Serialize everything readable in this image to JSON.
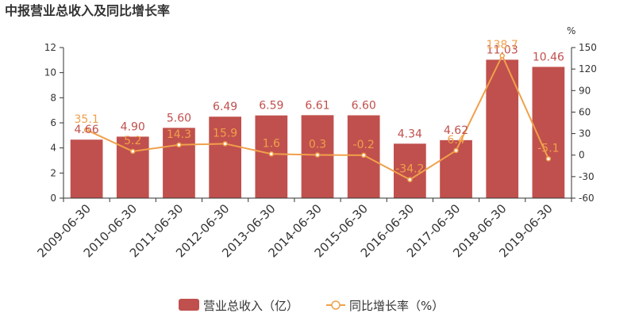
{
  "chart_data": {
    "type": "bar",
    "title": "中报营业总收入及同比增长率",
    "categories": [
      "2009-06-30",
      "2010-06-30",
      "2011-06-30",
      "2012-06-30",
      "2013-06-30",
      "2014-06-30",
      "2015-06-30",
      "2016-06-30",
      "2017-06-30",
      "2018-06-30",
      "2019-06-30"
    ],
    "series": [
      {
        "name": "营业总收入（亿）",
        "type": "bar",
        "axis": "left",
        "color": "#c0504d",
        "values": [
          4.66,
          4.9,
          5.6,
          6.49,
          6.59,
          6.61,
          6.6,
          4.34,
          4.62,
          11.03,
          10.46
        ],
        "labels": [
          "4.66",
          "4.90",
          "5.60",
          "6.49",
          "6.59",
          "6.61",
          "6.60",
          "4.34",
          "4.62",
          "11.03",
          "10.46"
        ]
      },
      {
        "name": "同比增长率（%）",
        "type": "line",
        "axis": "right",
        "color": "#f0a04b",
        "values": [
          35.1,
          5.2,
          14.3,
          15.9,
          1.6,
          0.3,
          -0.2,
          -34.2,
          6.4,
          138.7,
          -5.1
        ],
        "labels": [
          "35.1",
          "5.2",
          "14.3",
          "15.9",
          "1.6",
          "0.3",
          "-0.2",
          "-34.2",
          "6.4",
          "138.7",
          "-5.1"
        ]
      }
    ],
    "y_left": {
      "ylim": [
        0,
        12
      ],
      "ticks": [
        "0",
        "2",
        "4",
        "6",
        "8",
        "10",
        "12"
      ]
    },
    "y_right": {
      "ylim": [
        -60,
        150
      ],
      "unit": "%",
      "ticks": [
        "-60",
        "-30",
        "0",
        "30",
        "60",
        "90",
        "120",
        "150"
      ]
    },
    "grid": false,
    "legend": "bottom"
  }
}
